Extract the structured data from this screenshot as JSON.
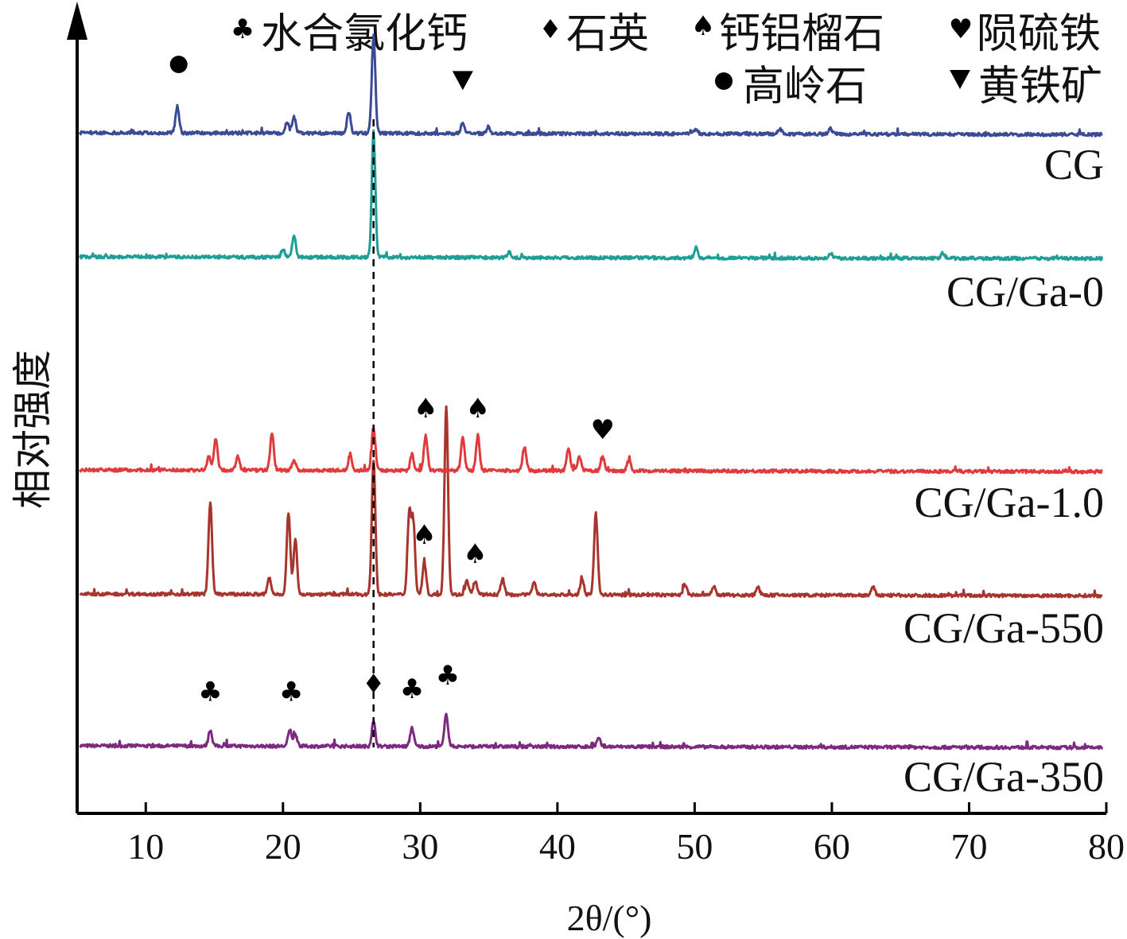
{
  "chart_data": {
    "type": "line",
    "xlabel": "2θ/(°)",
    "ylabel": "相对强度",
    "xlim": [
      5,
      80
    ],
    "xticks": [
      10,
      20,
      30,
      40,
      50,
      60,
      70,
      80
    ],
    "y_ticks_shown": false,
    "legend": {
      "placement": "top",
      "entries": [
        {
          "marker": "club",
          "label": "水合氯化钙"
        },
        {
          "marker": "diamond",
          "label": "石英"
        },
        {
          "marker": "spade",
          "label": "钙铝榴石"
        },
        {
          "marker": "heart",
          "label": "陨硫铁"
        },
        {
          "marker": "circle",
          "label": "高岭石"
        },
        {
          "marker": "triangle-down",
          "label": "黄铁矿"
        }
      ]
    },
    "reference_line": {
      "x": 26.6,
      "style": "dashed"
    },
    "series": [
      {
        "name": "CG/Ga-350",
        "color": "#7b2a7f",
        "offset": 4,
        "peaks": [
          [
            14.7,
            0.06
          ],
          [
            20.5,
            0.06
          ],
          [
            20.9,
            0.04
          ],
          [
            26.6,
            0.09
          ],
          [
            29.4,
            0.07
          ],
          [
            31.9,
            0.12
          ],
          [
            43.0,
            0.03
          ]
        ],
        "markers": [
          {
            "x": 14.7,
            "type": "club"
          },
          {
            "x": 20.6,
            "type": "club"
          },
          {
            "x": 26.6,
            "type": "diamond"
          },
          {
            "x": 29.4,
            "type": "club"
          },
          {
            "x": 32.0,
            "type": "club"
          }
        ]
      },
      {
        "name": "CG/Ga-550",
        "color": "#a8352d",
        "offset": 3,
        "peaks": [
          [
            14.7,
            0.34
          ],
          [
            19.0,
            0.06
          ],
          [
            20.4,
            0.3
          ],
          [
            20.9,
            0.2
          ],
          [
            26.6,
            0.5
          ],
          [
            29.2,
            0.3
          ],
          [
            29.5,
            0.26
          ],
          [
            30.3,
            0.12
          ],
          [
            31.9,
            0.7
          ],
          [
            33.4,
            0.05
          ],
          [
            34.0,
            0.05
          ],
          [
            36.0,
            0.06
          ],
          [
            38.3,
            0.05
          ],
          [
            41.8,
            0.06
          ],
          [
            42.8,
            0.3
          ],
          [
            49.3,
            0.04
          ],
          [
            51.4,
            0.03
          ],
          [
            54.6,
            0.03
          ],
          [
            63.0,
            0.03
          ]
        ],
        "markers": [
          {
            "x": 30.3,
            "type": "spade"
          },
          {
            "x": 34.0,
            "type": "spade"
          }
        ]
      },
      {
        "name": "CG/Ga-1.0",
        "color": "#e03a3d",
        "offset": 2,
        "peaks": [
          [
            14.6,
            0.05
          ],
          [
            15.1,
            0.12
          ],
          [
            16.7,
            0.05
          ],
          [
            19.2,
            0.14
          ],
          [
            20.8,
            0.04
          ],
          [
            24.9,
            0.06
          ],
          [
            26.6,
            0.16
          ],
          [
            29.4,
            0.06
          ],
          [
            30.4,
            0.13
          ],
          [
            33.1,
            0.12
          ],
          [
            34.2,
            0.13
          ],
          [
            37.6,
            0.09
          ],
          [
            40.8,
            0.08
          ],
          [
            41.6,
            0.05
          ],
          [
            43.3,
            0.05
          ],
          [
            45.2,
            0.04
          ]
        ],
        "markers": [
          {
            "x": 30.4,
            "type": "spade"
          },
          {
            "x": 34.2,
            "type": "spade"
          },
          {
            "x": 43.3,
            "type": "heart"
          }
        ]
      },
      {
        "name": "CG/Ga-0",
        "color": "#1e9e97",
        "offset": 1,
        "peaks": [
          [
            20.0,
            0.03
          ],
          [
            20.8,
            0.08
          ],
          [
            26.6,
            0.46
          ],
          [
            36.5,
            0.02
          ],
          [
            50.1,
            0.04
          ],
          [
            59.9,
            0.02
          ],
          [
            68.1,
            0.02
          ]
        ],
        "markers": []
      },
      {
        "name": "CG",
        "color": "#3a4a95",
        "offset": 0,
        "peaks": [
          [
            12.3,
            0.1
          ],
          [
            20.3,
            0.04
          ],
          [
            20.8,
            0.06
          ],
          [
            24.8,
            0.08
          ],
          [
            26.6,
            0.36
          ],
          [
            33.1,
            0.04
          ],
          [
            35.0,
            0.02
          ],
          [
            50.1,
            0.02
          ],
          [
            56.2,
            0.02
          ],
          [
            59.9,
            0.02
          ]
        ],
        "markers": [
          {
            "x": 12.4,
            "type": "circle"
          },
          {
            "x": 33.1,
            "type": "triangle-down"
          }
        ]
      }
    ]
  }
}
